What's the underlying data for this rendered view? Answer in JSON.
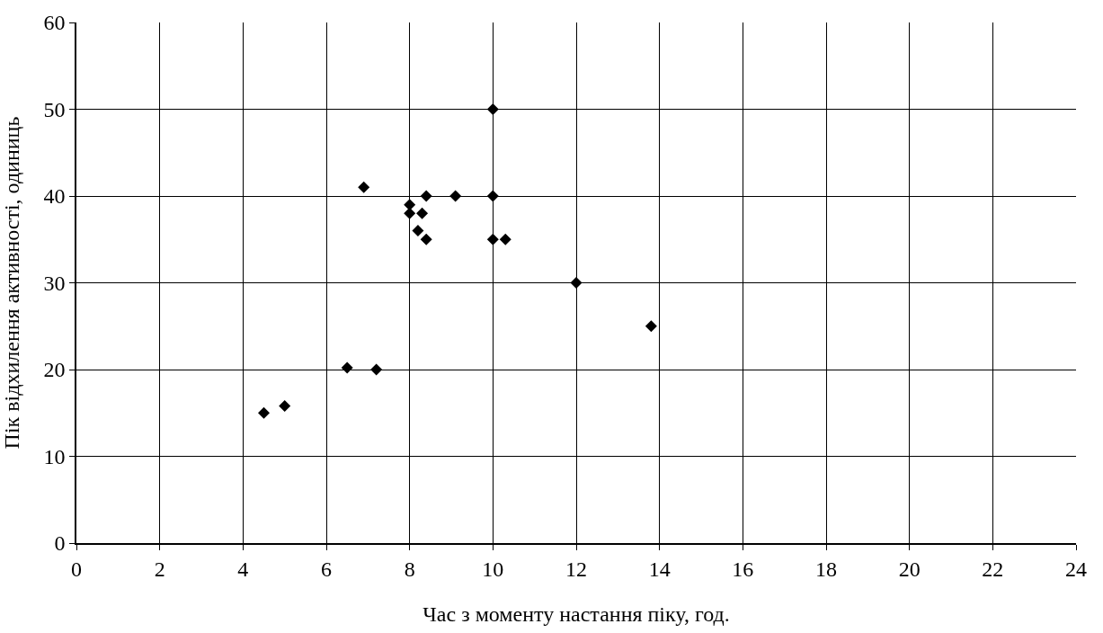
{
  "chart_data": {
    "type": "scatter",
    "xlabel": "Час з моменту настання піку, год.",
    "ylabel": "Пік відхилення активності, одиниць",
    "x": [
      4.5,
      5,
      6.5,
      7.2,
      6.9,
      8,
      8,
      8.3,
      8.2,
      8.4,
      8.4,
      9.1,
      10,
      10,
      10,
      10.3,
      12,
      13.8
    ],
    "series": [
      {
        "color": "#000000",
        "values": [
          15,
          15.8,
          20.2,
          20,
          41,
          39,
          38,
          38,
          36,
          35,
          40,
          40,
          50,
          40,
          35,
          35,
          30,
          25
        ]
      }
    ],
    "xlim": [
      0,
      24
    ],
    "xticks": [
      0,
      2,
      4,
      6,
      8,
      10,
      12,
      14,
      16,
      18,
      20,
      22,
      24
    ],
    "ylim": [
      0,
      60
    ],
    "yticks": [
      0,
      10,
      20,
      30,
      40,
      50,
      60
    ],
    "grid": true,
    "marker": "diamond",
    "legend": false
  }
}
